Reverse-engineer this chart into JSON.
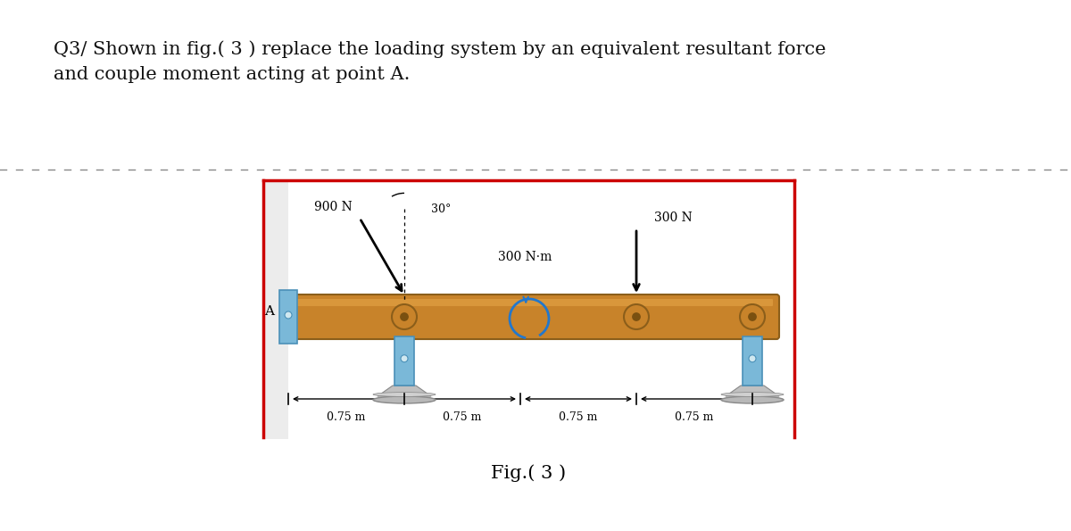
{
  "title_text": "Q3/ Shown in fig.( 3 ) replace the loading system by an equivalent resultant force\nand couple moment acting at point A.",
  "fig_caption": "Fig.( 3 )",
  "background_color": "#ffffff",
  "title_fontsize": 15,
  "caption_fontsize": 15,
  "beam_color": "#C8832A",
  "border_color": "#cc0000",
  "support_color_blue": "#7AB8D8",
  "force_900_label": "900 N",
  "force_900_angle_label": "30°",
  "force_300_label": "300 N",
  "moment_label": "300 N·m",
  "dim_label": "0.75 m",
  "label_A": "A"
}
